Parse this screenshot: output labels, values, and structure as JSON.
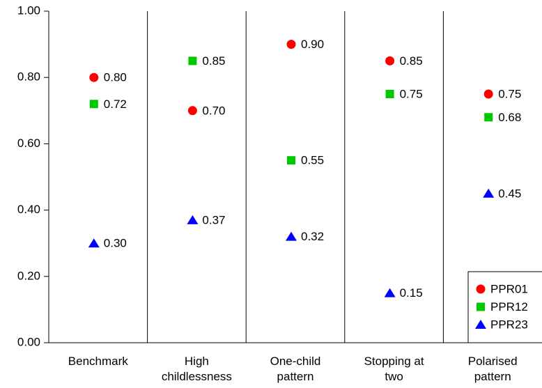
{
  "chart_data": {
    "type": "dot",
    "categories": [
      "Benchmark",
      "High childlessness",
      "One-child pattern",
      "Stopping at two",
      "Polarised pattern"
    ],
    "series": [
      {
        "name": "PPR01",
        "color": "#ff0000",
        "marker": "circle",
        "values": [
          0.8,
          0.7,
          0.9,
          0.85,
          0.75
        ],
        "value_labels": [
          "0.80",
          "0.70",
          "0.90",
          "0.85",
          "0.75"
        ]
      },
      {
        "name": "PPR12",
        "color": "#00c800",
        "marker": "square",
        "values": [
          0.72,
          0.85,
          0.55,
          0.75,
          0.68
        ],
        "value_labels": [
          "0.72",
          "0.85",
          "0.55",
          "0.75",
          "0.68"
        ]
      },
      {
        "name": "PPR23",
        "color": "#0000ff",
        "marker": "triangle",
        "values": [
          0.3,
          0.37,
          0.32,
          0.15,
          0.45
        ],
        "value_labels": [
          "0.30",
          "0.37",
          "0.32",
          "0.15",
          "0.45"
        ]
      }
    ],
    "ylim": [
      0,
      1
    ],
    "yticks": [
      {
        "value": 0,
        "label": "0.00"
      },
      {
        "value": 0.2,
        "label": "0.20"
      },
      {
        "value": 0.4,
        "label": "0.40"
      },
      {
        "value": 0.6,
        "label": "0.60"
      },
      {
        "value": 0.8,
        "label": "0.80"
      },
      {
        "value": 1,
        "label": "1.00"
      }
    ],
    "legend": "lower right"
  }
}
